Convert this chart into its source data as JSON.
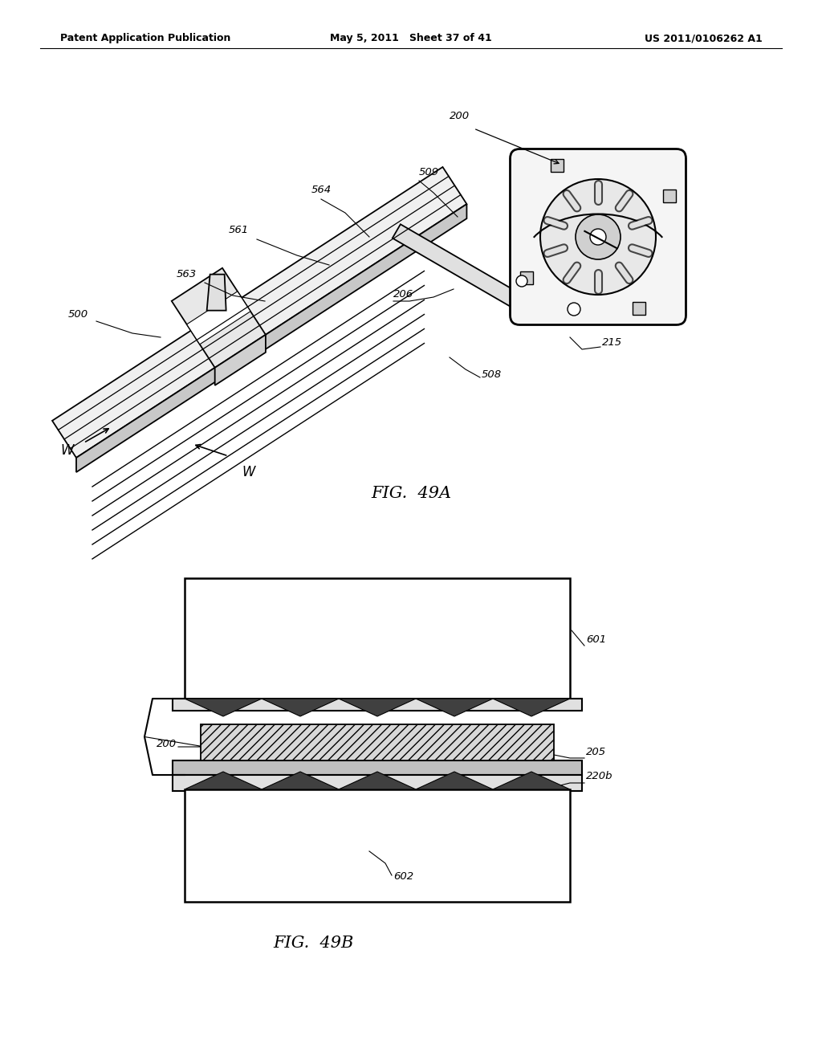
{
  "header_left": "Patent Application Publication",
  "header_mid": "May 5, 2011   Sheet 37 of 41",
  "header_right": "US 2011/0106262 A1",
  "fig49a_label": "FIG.  49A",
  "fig49b_label": "FIG.  49B",
  "bg_color": "#ffffff",
  "text_color": "#000000",
  "lbl_fs": 9.5,
  "fig_label_fs": 15
}
